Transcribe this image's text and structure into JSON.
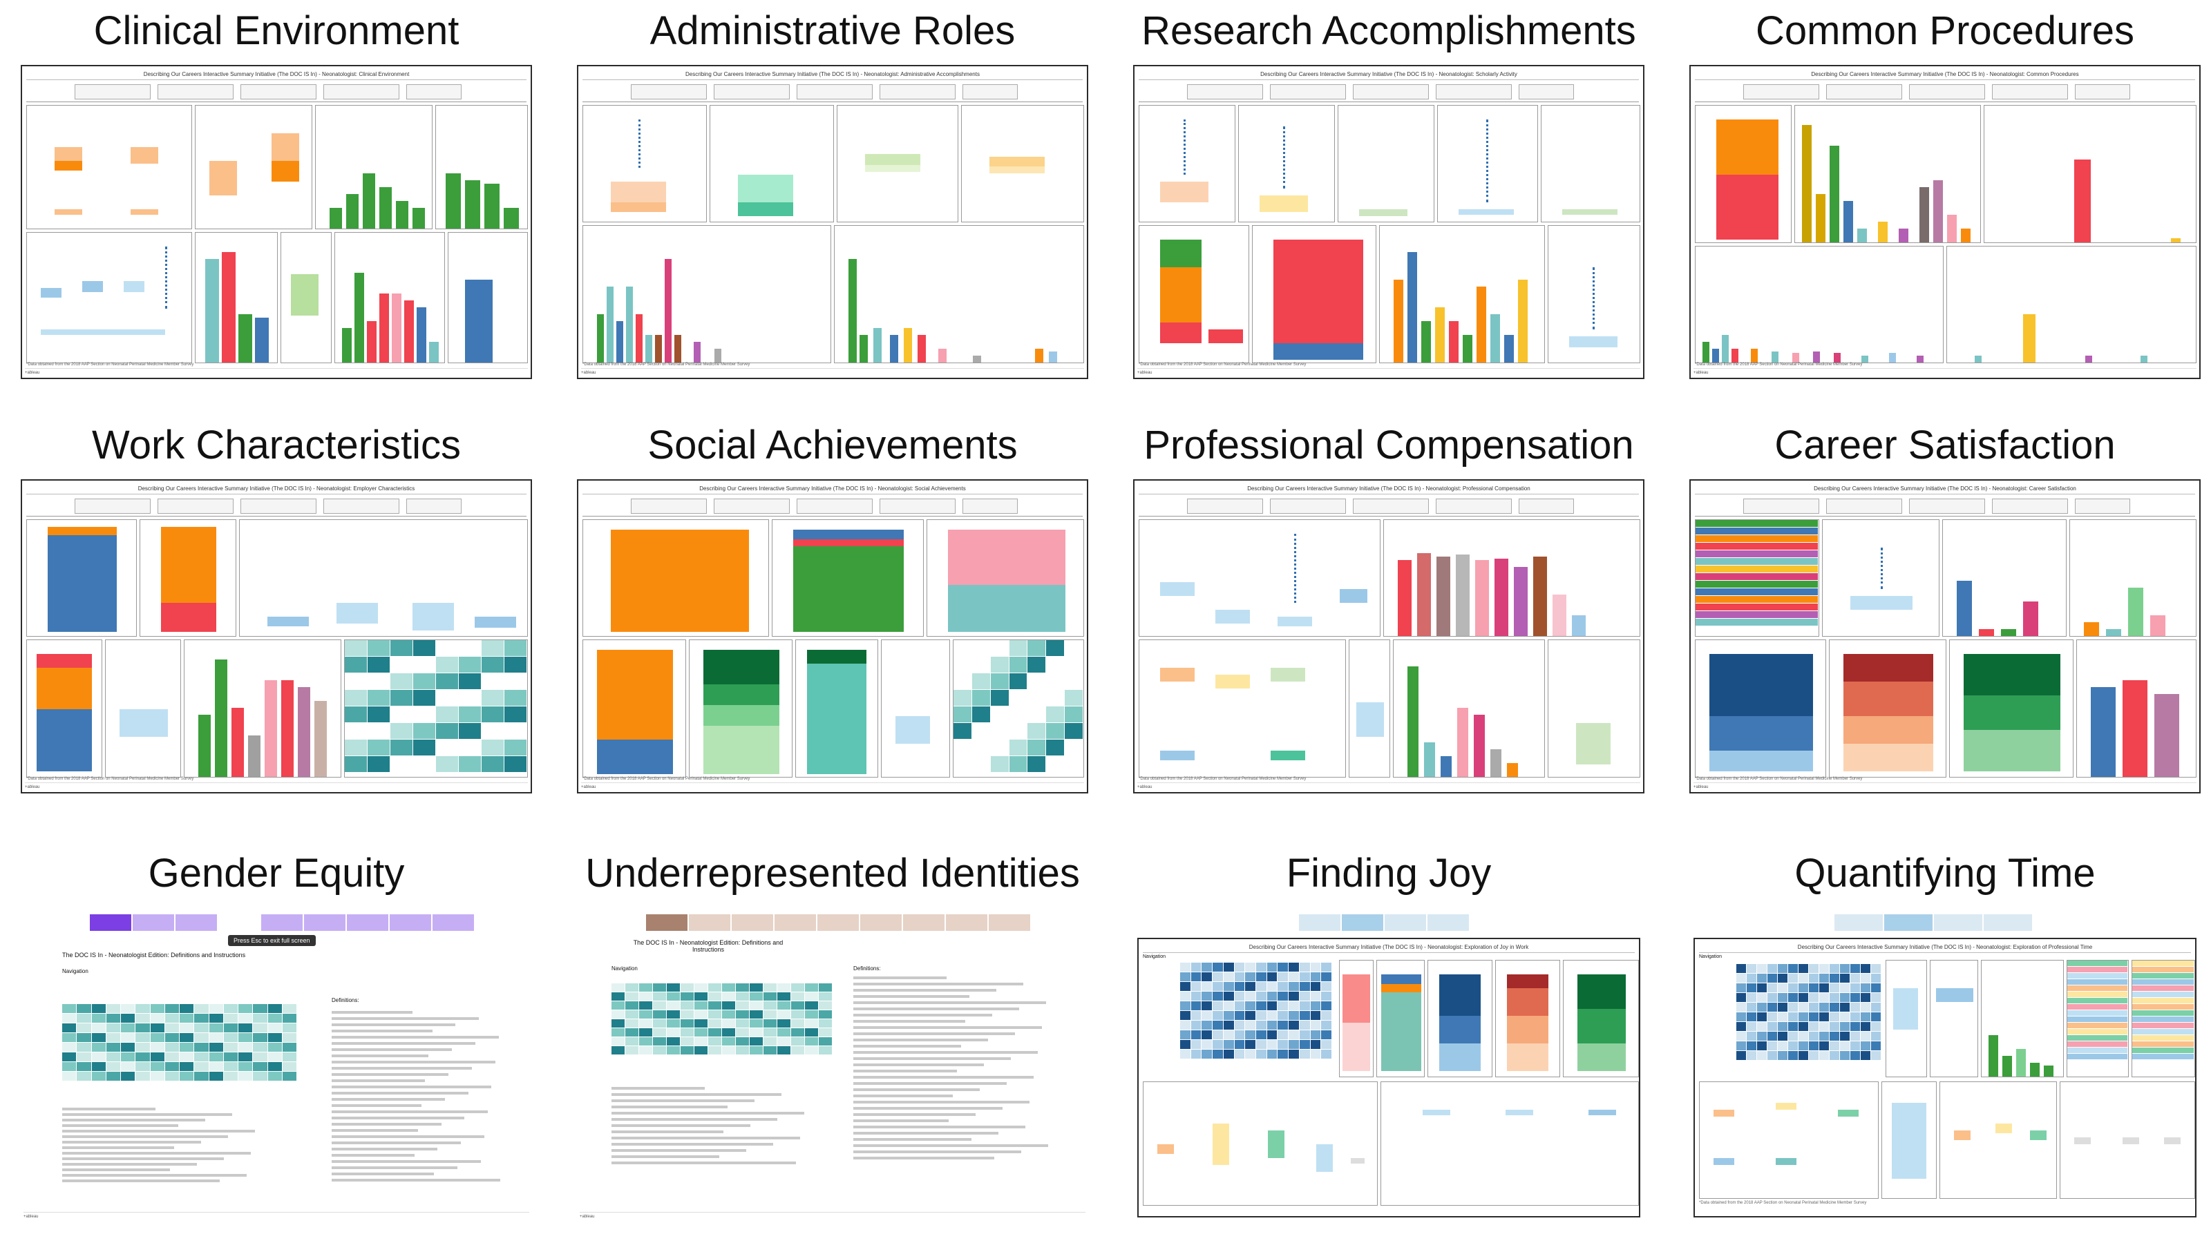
{
  "tiles": [
    {
      "id": "clinical-environment",
      "title": "Clinical Environment"
    },
    {
      "id": "administrative-roles",
      "title": "Administrative Roles"
    },
    {
      "id": "research-accomplishments",
      "title": "Research Accomplishments"
    },
    {
      "id": "common-procedures",
      "title": "Common Procedures"
    },
    {
      "id": "work-characteristics",
      "title": "Work Characteristics"
    },
    {
      "id": "social-achievements",
      "title": "Social Achievements"
    },
    {
      "id": "professional-compensation",
      "title": "Professional Compensation"
    },
    {
      "id": "career-satisfaction",
      "title": "Career Satisfaction"
    },
    {
      "id": "gender-equity",
      "title": "Gender Equity"
    },
    {
      "id": "underrepresented-identities",
      "title": "Underrepresented Identities"
    },
    {
      "id": "finding-joy",
      "title": "Finding Joy"
    },
    {
      "id": "quantifying-time",
      "title": "Quantifying Time"
    }
  ],
  "thumbs": {
    "clinical_environment_header": "Describing Our Careers Interactive Summary Initiative (The DOC IS In) - Neonatologist: Clinical Environment",
    "administrative_roles_header": "Describing Our Careers Interactive Summary Initiative (The DOC IS In) - Neonatologist: Administrative Accomplishments",
    "research_header": "Describing Our Careers Interactive Summary Initiative (The DOC IS In) - Neonatologist: Scholarly Activity",
    "procedures_header": "Describing Our Careers Interactive Summary Initiative (The DOC IS In) - Neonatologist: Common Procedures",
    "work_header": "Describing Our Careers Interactive Summary Initiative (The DOC IS In) - Neonatologist: Employer Characteristics",
    "social_header": "Describing Our Careers Interactive Summary Initiative (The DOC IS In) - Neonatologist: Social Achievements",
    "compensation_header": "Describing Our Careers Interactive Summary Initiative (The DOC IS In) - Neonatologist: Professional Compensation",
    "satisfaction_header": "Describing Our Careers Interactive Summary Initiative (The DOC IS In) - Neonatologist: Career Satisfaction",
    "gender_title": "The DOC IS In - Neonatologist Edition: Definitions and Instructions",
    "gender_tooltip": "Press Esc to exit full screen",
    "underrep_title": "The DOC IS In - Neonatologist Edition: Definitions and Instructions",
    "joy_header": "Describing Our Careers Interactive Summary Initiative (The DOC IS In) - Neonatologist: Exploration of Joy in Work",
    "time_header": "Describing Our Careers Interactive Summary Initiative (The DOC IS In) - Neonatologist: Exploration of Professional Time",
    "navigation_label": "Navigation",
    "definitions_label": "Definitions:",
    "footer_note": "*Data obtained from the 2018 AAP Section on Neonatal Perinatal Medicine Member Survey",
    "footer_brand": "+ableau"
  },
  "colors": {
    "orange": "#f98b0c",
    "red": "#f0424f",
    "blue": "#3f78b4",
    "green": "#3b9e3b",
    "teal": "#7bc4c4",
    "pink": "#f7a0b0",
    "purple": "#9d7be8",
    "dark_green": "#0b6b35",
    "light_blue": "#bfe0f3",
    "navy": "#1a4f86"
  }
}
